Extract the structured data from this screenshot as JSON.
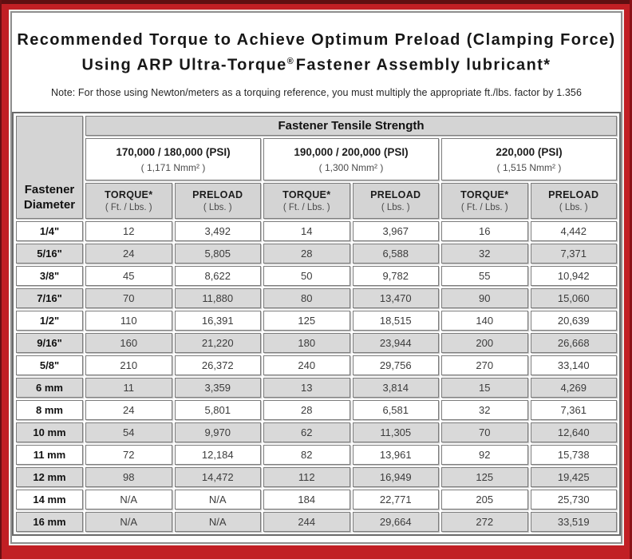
{
  "colors": {
    "frame_red": "#c11f24",
    "frame_dark": "#5f0f11",
    "cell_gray": "#d4d4d4",
    "row_stripe_gray": "#d9d9d9",
    "border_gray": "#6a6a6a"
  },
  "title": {
    "line1": "Recommended Torque to Achieve Optimum Preload (Clamping Force)",
    "line2a": "Using ARP Ultra-Torque",
    "line2_reg": "®",
    "line2b": "Fastener Assembly lubricant*",
    "note": "Note: For those using Newton/meters as a torquing reference, you must multiply the appropriate ft./lbs. factor by 1.356"
  },
  "table": {
    "corner": {
      "line1": "Fastener",
      "line2": "Diameter"
    },
    "tensile_header": "Fastener Tensile Strength",
    "groups": [
      {
        "psi": "170,000 / 180,000 (PSI)",
        "nmm": "( 1,171 Nmm² )"
      },
      {
        "psi": "190,000 / 200,000 (PSI)",
        "nmm": "( 1,300 Nmm² )"
      },
      {
        "psi": "220,000 (PSI)",
        "nmm": "( 1,515 Nmm² )"
      }
    ],
    "col_headers": {
      "torque": "TORQUE*",
      "torque_sub": "( Ft. / Lbs. )",
      "preload": "PRELOAD",
      "preload_sub": "( Lbs. )"
    },
    "rows": [
      {
        "dia": "1/4\"",
        "values": [
          "12",
          "3,492",
          "14",
          "3,967",
          "16",
          "4,442"
        ]
      },
      {
        "dia": "5/16\"",
        "values": [
          "24",
          "5,805",
          "28",
          "6,588",
          "32",
          "7,371"
        ]
      },
      {
        "dia": "3/8\"",
        "values": [
          "45",
          "8,622",
          "50",
          "9,782",
          "55",
          "10,942"
        ]
      },
      {
        "dia": "7/16\"",
        "values": [
          "70",
          "11,880",
          "80",
          "13,470",
          "90",
          "15,060"
        ]
      },
      {
        "dia": "1/2\"",
        "values": [
          "110",
          "16,391",
          "125",
          "18,515",
          "140",
          "20,639"
        ]
      },
      {
        "dia": "9/16\"",
        "values": [
          "160",
          "21,220",
          "180",
          "23,944",
          "200",
          "26,668"
        ]
      },
      {
        "dia": "5/8\"",
        "values": [
          "210",
          "26,372",
          "240",
          "29,756",
          "270",
          "33,140"
        ]
      },
      {
        "dia": "6 mm",
        "values": [
          "11",
          "3,359",
          "13",
          "3,814",
          "15",
          "4,269"
        ]
      },
      {
        "dia": "8 mm",
        "values": [
          "24",
          "5,801",
          "28",
          "6,581",
          "32",
          "7,361"
        ]
      },
      {
        "dia": "10 mm",
        "values": [
          "54",
          "9,970",
          "62",
          "11,305",
          "70",
          "12,640"
        ]
      },
      {
        "dia": "11 mm",
        "values": [
          "72",
          "12,184",
          "82",
          "13,961",
          "92",
          "15,738"
        ]
      },
      {
        "dia": "12 mm",
        "values": [
          "98",
          "14,472",
          "112",
          "16,949",
          "125",
          "19,425"
        ]
      },
      {
        "dia": "14 mm",
        "values": [
          "N/A",
          "N/A",
          "184",
          "22,771",
          "205",
          "25,730"
        ]
      },
      {
        "dia": "16 mm",
        "values": [
          "N/A",
          "N/A",
          "244",
          "29,664",
          "272",
          "33,519"
        ]
      }
    ]
  }
}
